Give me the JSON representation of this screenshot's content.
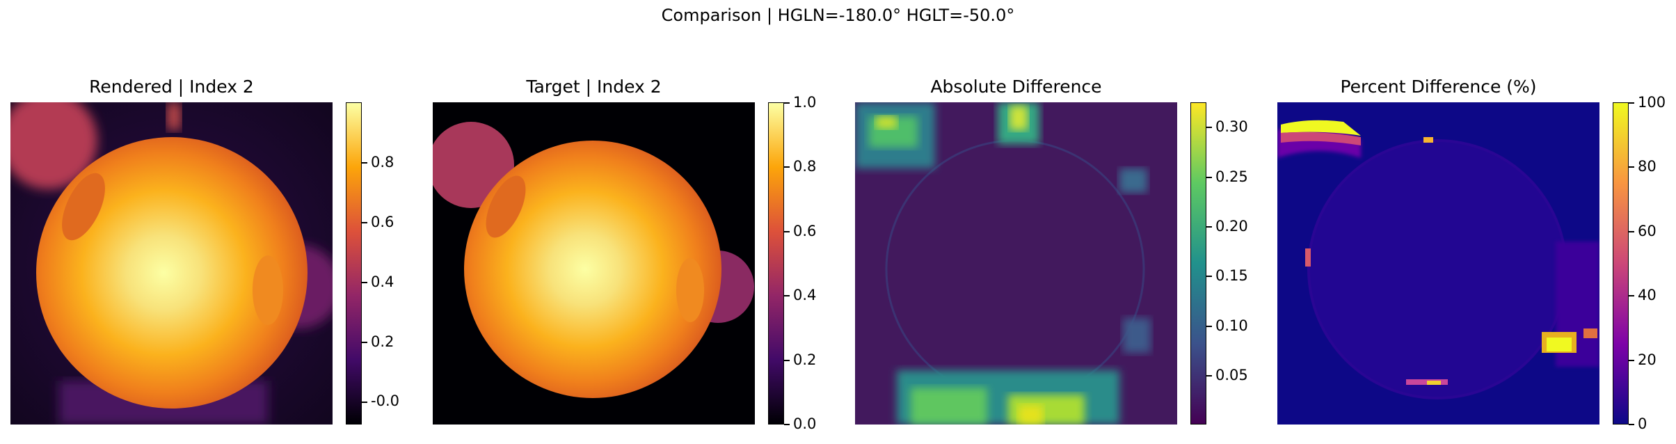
{
  "figure": {
    "suptitle": "Comparison | HGLN=-180.0° HGLT=-50.0°"
  },
  "chart_data": [
    {
      "type": "heatmap",
      "title": "Rendered | Index 2",
      "colormap": "inferno",
      "colorbar": {
        "min": -0.08,
        "max": 1.0,
        "ticks": [
          -0.0,
          0.2,
          0.4,
          0.6,
          0.8
        ],
        "tick_labels": [
          "-0.0",
          "0.2",
          "0.4",
          "0.6",
          "0.8"
        ]
      },
      "grid": false
    },
    {
      "type": "heatmap",
      "title": "Target | Index 2",
      "colormap": "inferno",
      "colorbar": {
        "min": 0.0,
        "max": 1.0,
        "ticks": [
          0.0,
          0.2,
          0.4,
          0.6,
          0.8,
          1.0
        ],
        "tick_labels": [
          "0.0",
          "0.2",
          "0.4",
          "0.6",
          "0.8",
          "1.0"
        ]
      },
      "grid": false
    },
    {
      "type": "heatmap",
      "title": "Absolute Difference",
      "colormap": "viridis",
      "colorbar": {
        "min": 0.0,
        "max": 0.325,
        "ticks": [
          0.05,
          0.1,
          0.15,
          0.2,
          0.25,
          0.3
        ],
        "tick_labels": [
          "0.05",
          "0.10",
          "0.15",
          "0.20",
          "0.25",
          "0.30"
        ]
      },
      "grid": false
    },
    {
      "type": "heatmap",
      "title": "Percent Difference (%)",
      "colormap": "plasma",
      "colorbar": {
        "min": 0,
        "max": 100,
        "ticks": [
          0,
          20,
          40,
          60,
          80,
          100
        ],
        "tick_labels": [
          "0",
          "20",
          "40",
          "60",
          "80",
          "100"
        ]
      },
      "grid": false
    }
  ],
  "colors": {
    "inferno": [
      "#000004",
      "#420a68",
      "#932667",
      "#dd513a",
      "#fca50a",
      "#fcffa4"
    ],
    "viridis": [
      "#440154",
      "#3b528b",
      "#21918c",
      "#5ec962",
      "#fde725"
    ],
    "plasma": [
      "#0d0887",
      "#7e03a8",
      "#cc4778",
      "#f89540",
      "#f0f921"
    ]
  }
}
